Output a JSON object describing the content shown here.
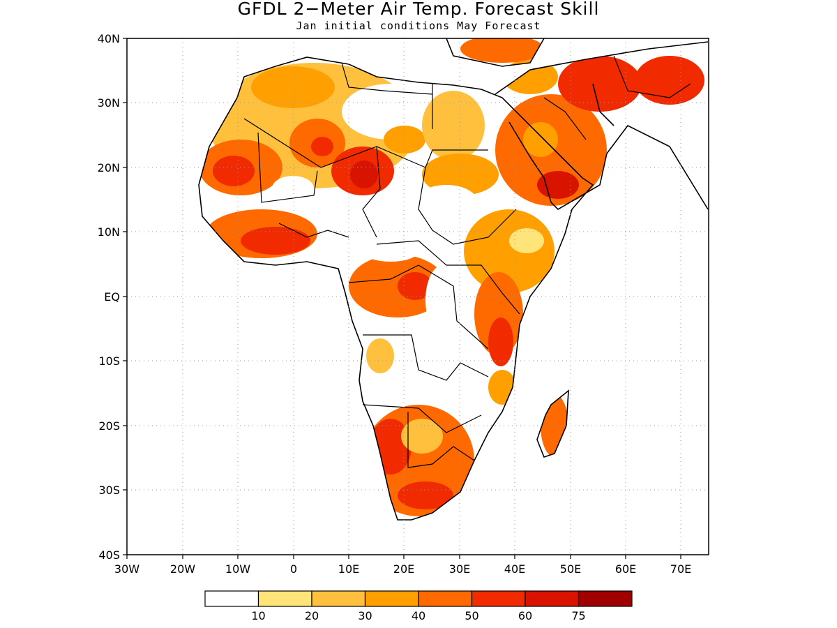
{
  "title": "GFDL 2−Meter Air Temp. Forecast Skill",
  "subtitle": "Jan initial conditions  May Forecast",
  "map": {
    "lon_range": [
      -30,
      75
    ],
    "lat_range": [
      -40,
      40
    ],
    "x_ticks": [
      "30W",
      "20W",
      "10W",
      "0",
      "10E",
      "20E",
      "30E",
      "40E",
      "50E",
      "60E",
      "70E"
    ],
    "y_ticks": [
      "40N",
      "30N",
      "20N",
      "10N",
      "EQ",
      "10S",
      "20S",
      "30S",
      "40S"
    ],
    "grid": "dotted"
  },
  "legend": {
    "thresholds": [
      "10",
      "20",
      "30",
      "40",
      "50",
      "60",
      "75"
    ],
    "colors": [
      "#ffffff",
      "#ffe47a",
      "#ffc13d",
      "#ffa000",
      "#ff6a00",
      "#f22a00",
      "#d81400",
      "#a00000"
    ]
  }
}
